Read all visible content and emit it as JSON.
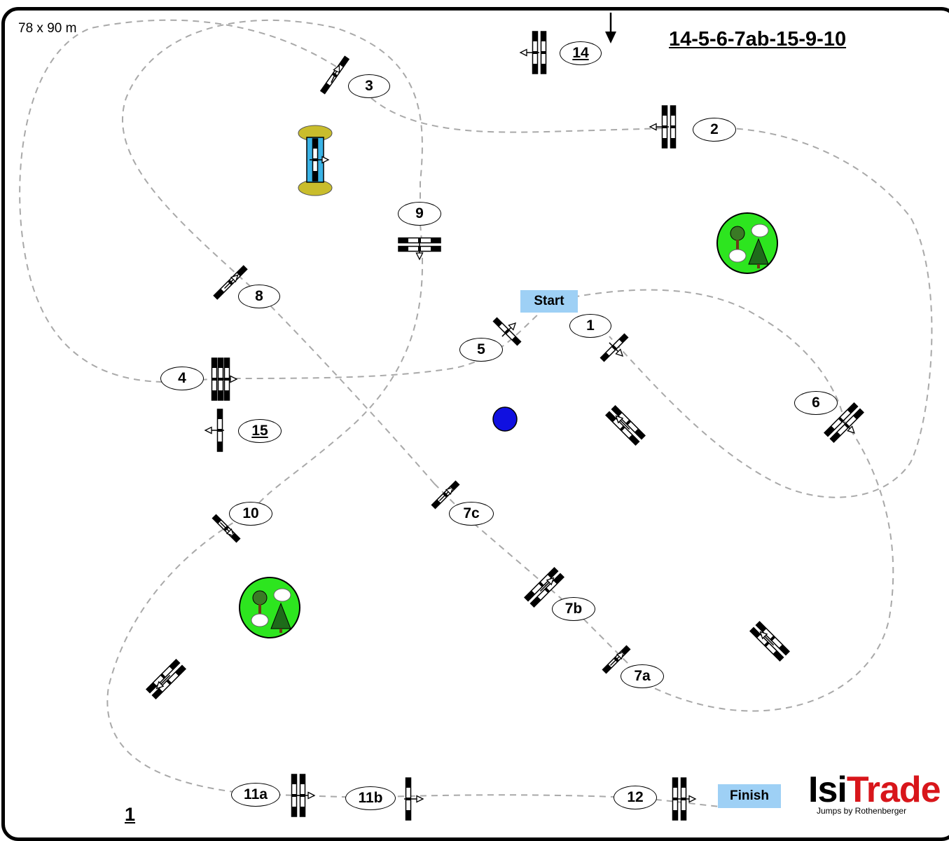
{
  "arena": {
    "dimensions": "78 x 90 m",
    "sheet_number": "1"
  },
  "course": {
    "title": "14-5-6-7ab-15-9-10"
  },
  "start_label": "Start",
  "finish_label": "Finish",
  "obstacles": [
    {
      "label": "1",
      "underlined": false
    },
    {
      "label": "2",
      "underlined": false
    },
    {
      "label": "3",
      "underlined": false
    },
    {
      "label": "4",
      "underlined": false
    },
    {
      "label": "5",
      "underlined": false
    },
    {
      "label": "6",
      "underlined": false
    },
    {
      "label": "7a",
      "underlined": false
    },
    {
      "label": "7b",
      "underlined": false
    },
    {
      "label": "7c",
      "underlined": false
    },
    {
      "label": "8",
      "underlined": false
    },
    {
      "label": "9",
      "underlined": false
    },
    {
      "label": "10",
      "underlined": false
    },
    {
      "label": "11a",
      "underlined": false
    },
    {
      "label": "11b",
      "underlined": false
    },
    {
      "label": "12",
      "underlined": false
    },
    {
      "label": "14",
      "underlined": true
    },
    {
      "label": "15",
      "underlined": true
    }
  ],
  "colors": {
    "path": "#a9a9a9",
    "tree_circle": "#2de51f",
    "water_marker": "#1010e0",
    "start_finish": "#9ed0f5",
    "logo_accent": "#d8161b",
    "water_jump": "#3ab3e6",
    "hedge": "#c9bd2c"
  },
  "logo": {
    "part1": "Isi",
    "part2": "Trade",
    "tagline": "Jumps by Rothenberger"
  }
}
